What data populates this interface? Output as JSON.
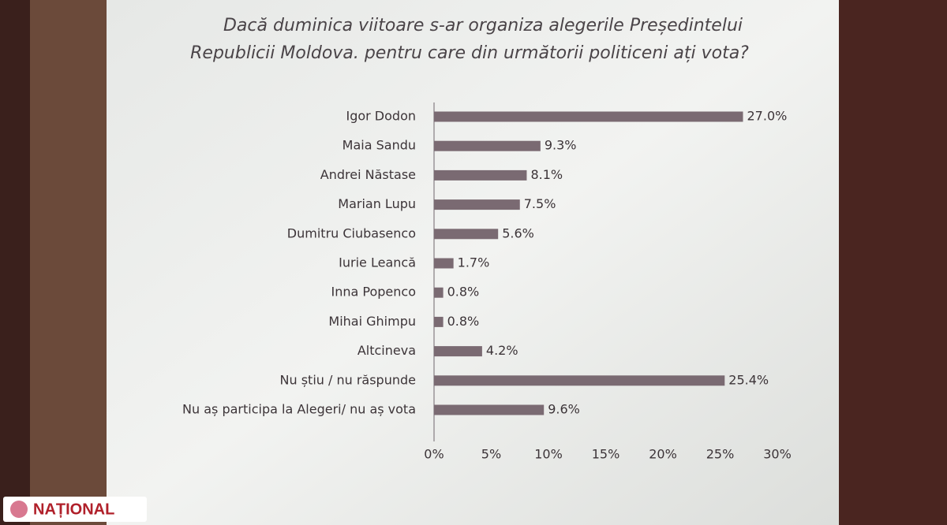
{
  "chart_data": {
    "type": "hbar",
    "title": [
      "Dacă duminica viitoare s-ar organiza alegerile Președintelui",
      "Republicii Moldova. pentru care din următorii politiceni ați vota?"
    ],
    "categories": [
      "Igor Dodon",
      "Maia Sandu",
      "Andrei Năstase",
      "Marian Lupu",
      "Dumitru Ciubasenco",
      "Iurie Leancă",
      "Inna Popenco",
      "Mihai Ghimpu",
      "Altcineva",
      "Nu știu / nu răspunde",
      "Nu aș participa la Alegeri/ nu aș vota"
    ],
    "values": [
      27.0,
      9.3,
      8.1,
      7.5,
      5.6,
      1.7,
      0.8,
      0.8,
      4.2,
      25.4,
      9.6
    ],
    "value_labels": [
      "27.0%",
      "9.3%",
      "8.1%",
      "7.5%",
      "5.6%",
      "1.7%",
      "0.8%",
      "0.8%",
      "4.2%",
      "25.4%",
      "9.6%"
    ],
    "color": "#7a6a72",
    "xlim": [
      0,
      30
    ],
    "xticks": [
      {
        "value": 0,
        "label": "0%"
      },
      {
        "value": 5,
        "label": "5%"
      },
      {
        "value": 10,
        "label": "10%"
      },
      {
        "value": 15,
        "label": "15%"
      },
      {
        "value": 20,
        "label": "20%"
      },
      {
        "value": 25,
        "label": "25%"
      },
      {
        "value": 30,
        "label": "30%"
      }
    ],
    "grid": false
  },
  "logo": "NAȚIONAL"
}
